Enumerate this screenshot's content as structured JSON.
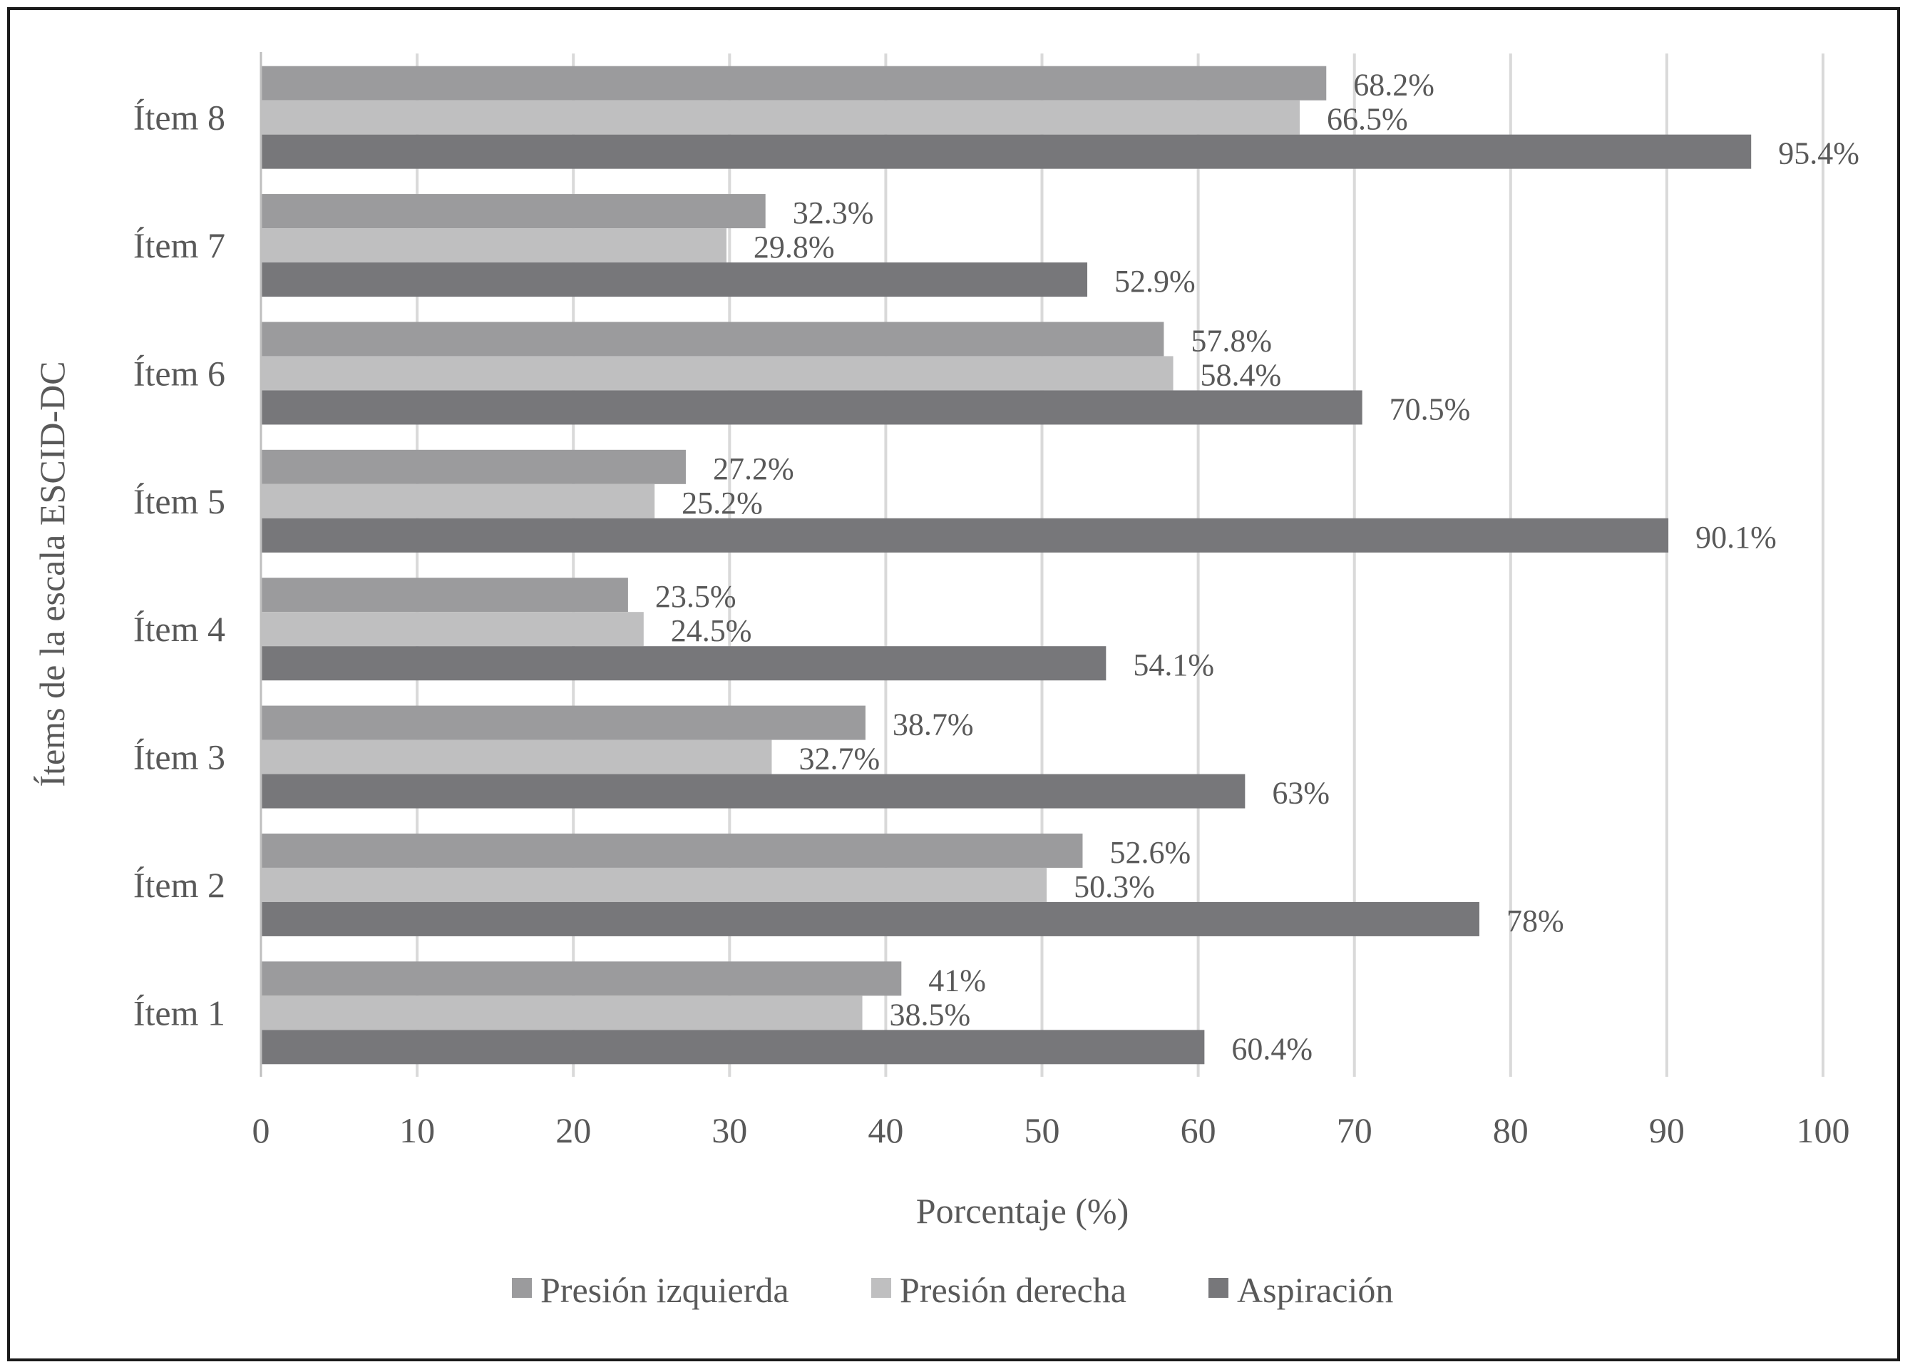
{
  "chart_data": {
    "type": "bar",
    "orientation": "horizontal",
    "title": "",
    "xlabel": "Porcentaje (%)",
    "ylabel": "Ítems de la escala ESCID-DC",
    "xlim": [
      0,
      100
    ],
    "xticks": [
      "0",
      "10",
      "20",
      "30",
      "40",
      "50",
      "60",
      "70",
      "80",
      "90",
      "100"
    ],
    "categories": [
      "Ítem 1",
      "Ítem 2",
      "Ítem 3",
      "Ítem 4",
      "Ítem 5",
      "Ítem 6",
      "Ítem 7",
      "Ítem 8"
    ],
    "grid": "vertical",
    "legend_position": "bottom",
    "series": [
      {
        "name": "Presión izquierda",
        "color": "#9b9b9d",
        "values": [
          41,
          52.6,
          38.7,
          23.5,
          27.2,
          57.8,
          32.3,
          68.2
        ],
        "labels": [
          "41%",
          "52.6%",
          "38.7%",
          "23.5%",
          "27.2%",
          "57.8%",
          "32.3%",
          "68.2%"
        ]
      },
      {
        "name": "Presión derecha",
        "color": "#bfbfc0",
        "values": [
          38.5,
          50.3,
          32.7,
          24.5,
          25.2,
          58.4,
          29.8,
          66.5
        ],
        "labels": [
          "38.5%",
          "50.3%",
          "32.7%",
          "24.5%",
          "25.2%",
          "58.4%",
          "29.8%",
          "66.5%"
        ]
      },
      {
        "name": "Aspiración",
        "color": "#77777a",
        "values": [
          60.4,
          78,
          63,
          54.1,
          90.1,
          70.5,
          52.9,
          95.4
        ],
        "labels": [
          "60.4%",
          "78%",
          "63%",
          "54.1%",
          "90.1%",
          "70.5%",
          "52.9%",
          "95.4%"
        ]
      }
    ]
  }
}
